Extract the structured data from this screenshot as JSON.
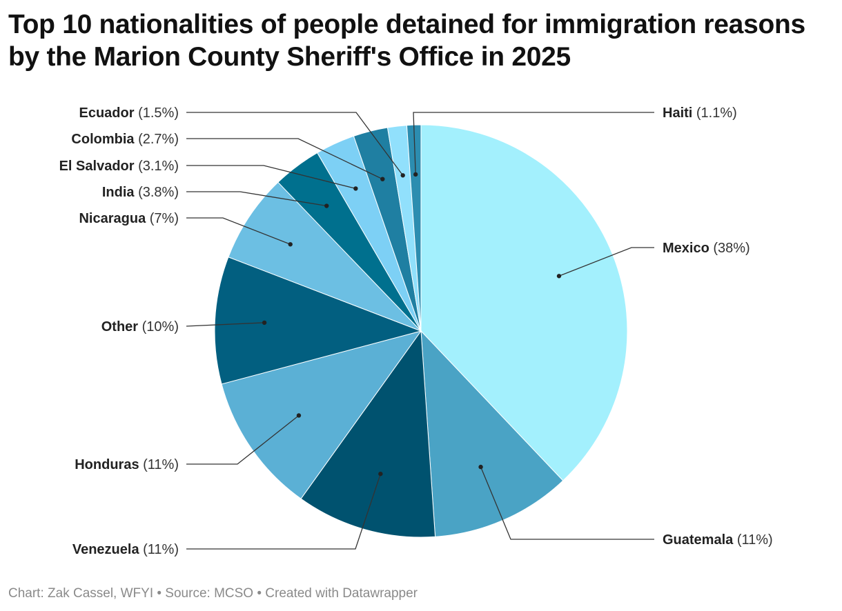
{
  "title": "Top 10 nationalities of people detained for immigration reasons by the Marion County Sheriff's Office in 2025",
  "footer": "Chart: Zak Cassel, WFYI • Source: MCSO • Created with Datawrapper",
  "chart_data": {
    "type": "pie",
    "title": "Top 10 nationalities of people detained for immigration reasons by the Marion County Sheriff's Office in 2025",
    "unit": "%",
    "slices": [
      {
        "name": "Mexico",
        "value": 38,
        "label": "Mexico",
        "pct_text": "(38%)",
        "color": "#a3f0fd"
      },
      {
        "name": "Guatemala",
        "value": 11,
        "label": "Guatemala",
        "pct_text": "(11%)",
        "color": "#4aa3c5"
      },
      {
        "name": "Venezuela",
        "value": 11,
        "label": "Venezuela",
        "pct_text": "(11%)",
        "color": "#00526f"
      },
      {
        "name": "Honduras",
        "value": 11,
        "label": "Honduras",
        "pct_text": "(11%)",
        "color": "#5bb0d5"
      },
      {
        "name": "Other",
        "value": 10,
        "label": "Other",
        "pct_text": "(10%)",
        "color": "#025f80"
      },
      {
        "name": "Nicaragua",
        "value": 7,
        "label": "Nicaragua",
        "pct_text": "(7%)",
        "color": "#6cbfe3"
      },
      {
        "name": "India",
        "value": 3.8,
        "label": "India",
        "pct_text": "(3.8%)",
        "color": "#00708e"
      },
      {
        "name": "El Salvador",
        "value": 3.1,
        "label": "El Salvador",
        "pct_text": "(3.1%)",
        "color": "#7dd0f5"
      },
      {
        "name": "Colombia",
        "value": 2.7,
        "label": "Colombia",
        "pct_text": "(2.7%)",
        "color": "#1f7fa2"
      },
      {
        "name": "Ecuador",
        "value": 1.5,
        "label": "Ecuador",
        "pct_text": "(1.5%)",
        "color": "#91e0fc"
      },
      {
        "name": "Haiti",
        "value": 1.1,
        "label": "Haiti",
        "pct_text": "(1.1%)",
        "color": "#2c8db0"
      }
    ]
  }
}
